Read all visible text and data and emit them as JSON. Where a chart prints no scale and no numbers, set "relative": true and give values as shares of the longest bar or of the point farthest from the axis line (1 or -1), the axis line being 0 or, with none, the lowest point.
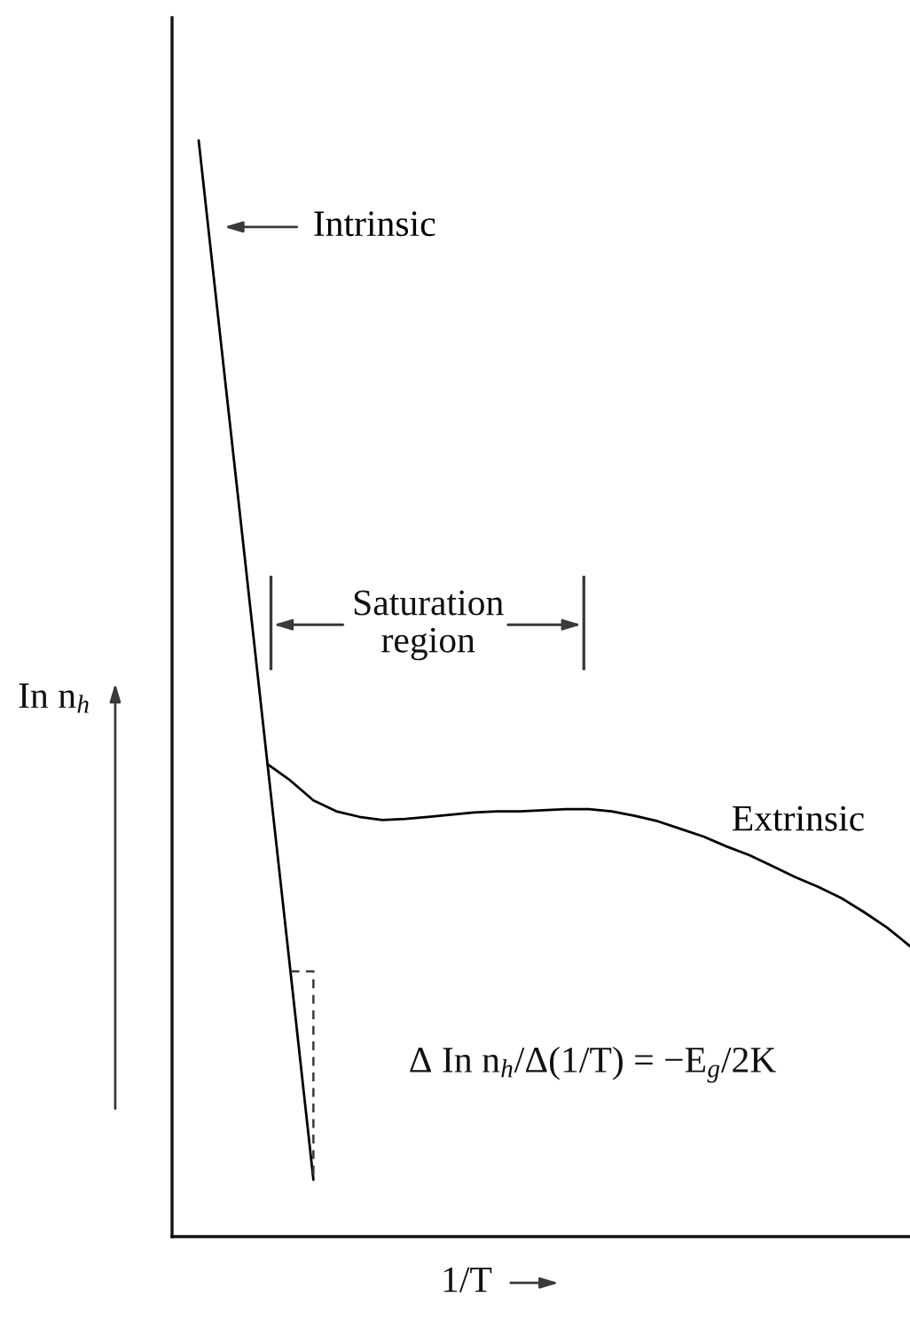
{
  "chart_data": {
    "type": "line",
    "relative": true,
    "xlabel": "1/T",
    "ylabel": "In n$_{h}$",
    "line_style": "solid",
    "categories": [
      null,
      null,
      null,
      null,
      null,
      null,
      null,
      null,
      null,
      null,
      null,
      null,
      null,
      null,
      null,
      null,
      null,
      null,
      null,
      null,
      null,
      null,
      null,
      null,
      null,
      null,
      null,
      null,
      null,
      null,
      null,
      null
    ],
    "series": [
      {
        "name": "Intrinsic",
        "color": "#000000",
        "values": [
          1.0,
          0.81,
          0.621,
          0.431,
          0.242,
          0.052,
          null,
          null,
          null,
          null,
          null,
          null,
          null,
          null,
          null,
          null,
          null,
          null,
          null,
          null,
          null,
          null,
          null,
          null,
          null,
          null,
          null,
          null,
          null,
          null,
          null,
          null
        ]
      },
      {
        "name": "Extrinsic",
        "color": "#000000",
        "values": [
          null,
          null,
          null,
          0.431,
          0.416,
          0.398,
          0.388,
          0.383,
          0.38,
          0.381,
          0.383,
          0.385,
          0.387,
          0.388,
          0.388,
          0.389,
          0.39,
          0.39,
          0.388,
          0.384,
          0.379,
          0.372,
          0.365,
          0.356,
          0.348,
          0.338,
          0.328,
          0.319,
          0.309,
          0.296,
          0.282,
          0.265
        ]
      }
    ],
    "annotations": [
      "Saturation region",
      "Δ In n$_{h}$/Δ(1/T) = −E$_{g}$/2K"
    ]
  }
}
